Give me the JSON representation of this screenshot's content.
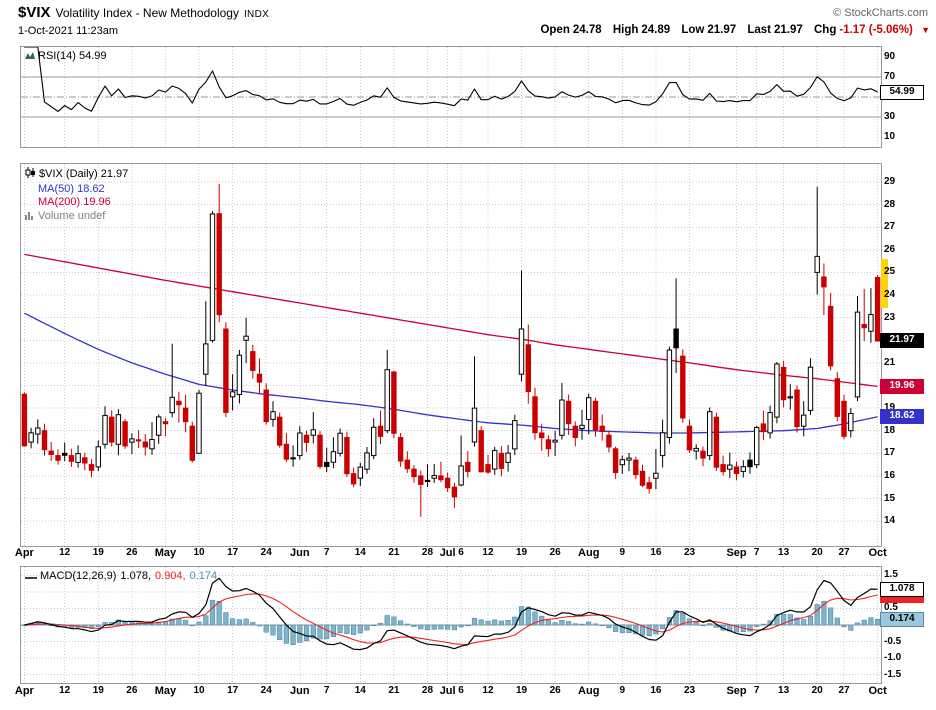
{
  "header": {
    "symbol": "$VIX",
    "title": "Volatility Index - New Methodology",
    "exchange": "INDX",
    "copyright": "© StockCharts.com",
    "timestamp": "1-Oct-2021 11:23am",
    "quote": [
      {
        "label": "Open",
        "value": "24.78"
      },
      {
        "label": "High",
        "value": "24.89"
      },
      {
        "label": "Low",
        "value": "21.97"
      },
      {
        "label": "Last",
        "value": "21.97"
      },
      {
        "label": "Chg",
        "value": "-1.17 (-5.06%)"
      }
    ],
    "direction_arrow": "▼"
  },
  "panels": {
    "rsi": {
      "legend_text": "RSI(14) 54.99",
      "range": [
        0,
        100
      ],
      "ticks": [
        90,
        70,
        50,
        30,
        10
      ],
      "overbought": 70,
      "oversold": 30,
      "midline": 50,
      "value_box": {
        "text": "54.99",
        "value": 54.99,
        "bg": "#ffffff",
        "fg": "#000000",
        "border": "#000000"
      }
    },
    "price": {
      "legend_symbol": "$VIX (Daily) 21.97",
      "legend_ma50": "MA(50) 18.62",
      "legend_ma200": "MA(200) 19.96",
      "legend_volume": "Volume undef",
      "range": [
        12.9,
        29.8
      ],
      "ticks": [
        29,
        28,
        27,
        26,
        25,
        24,
        23,
        22,
        21,
        20,
        19,
        18,
        17,
        16,
        15,
        14
      ],
      "boxes": [
        {
          "text": "21.97",
          "value": 21.97,
          "bg": "#000000",
          "fg": "#ffffff",
          "border": "#000000"
        },
        {
          "text": "19.96",
          "value": 19.96,
          "bg": "#cc0033",
          "fg": "#ffffff",
          "border": "#cc0033"
        },
        {
          "text": "18.62",
          "value": 18.62,
          "bg": "#3333cc",
          "fg": "#ffffff",
          "border": "#3333cc"
        }
      ],
      "highlight": {
        "from": 25.55,
        "to": 23.4,
        "color": "#ffd400"
      }
    },
    "macd": {
      "legend_name": "MACD(12,26,9)",
      "legend_line_value": "1.078,",
      "legend_signal_value": "0.904,",
      "legend_hist_value": "0.174",
      "range": [
        -1.75,
        1.75
      ],
      "ticks": [
        {
          "t": "1.5",
          "v": 1.5
        },
        {
          "t": "1.0",
          "v": 1.0
        },
        {
          "t": "0.5",
          "v": 0.5
        },
        {
          "t": "0.0",
          "v": 0.0
        },
        {
          "t": "-0.5",
          "v": -0.5
        },
        {
          "t": "-1.0",
          "v": -1.0
        },
        {
          "t": "-1.5",
          "v": -1.5
        }
      ],
      "boxes": [
        {
          "text": "0.904",
          "value": 0.904,
          "bg": "#ee2222",
          "fg": "#ffffff",
          "border": "#ee2222"
        },
        {
          "text": "1.078",
          "value": 1.078,
          "bg": "#ffffff",
          "fg": "#000000",
          "border": "#000000"
        },
        {
          "text": "0.174",
          "value": 0.174,
          "bg": "#9cc7dc",
          "fg": "#000000",
          "border": "#4f8aa8"
        }
      ]
    }
  },
  "x_axis": {
    "ticks": [
      {
        "label": "Apr",
        "i": 0,
        "month": true
      },
      {
        "label": "12",
        "i": 6,
        "month": false
      },
      {
        "label": "19",
        "i": 11,
        "month": false
      },
      {
        "label": "26",
        "i": 16,
        "month": false
      },
      {
        "label": "May",
        "i": 21,
        "month": true
      },
      {
        "label": "10",
        "i": 26,
        "month": false
      },
      {
        "label": "17",
        "i": 31,
        "month": false
      },
      {
        "label": "24",
        "i": 36,
        "month": false
      },
      {
        "label": "Jun",
        "i": 41,
        "month": true
      },
      {
        "label": "7",
        "i": 45,
        "month": false
      },
      {
        "label": "14",
        "i": 50,
        "month": false
      },
      {
        "label": "21",
        "i": 55,
        "month": false
      },
      {
        "label": "28",
        "i": 60,
        "month": false
      },
      {
        "label": "Jul",
        "i": 63,
        "month": true
      },
      {
        "label": "6",
        "i": 65,
        "month": false
      },
      {
        "label": "12",
        "i": 69,
        "month": false
      },
      {
        "label": "19",
        "i": 74,
        "month": false
      },
      {
        "label": "26",
        "i": 79,
        "month": false
      },
      {
        "label": "Aug",
        "i": 84,
        "month": true
      },
      {
        "label": "9",
        "i": 89,
        "month": false
      },
      {
        "label": "16",
        "i": 94,
        "month": false
      },
      {
        "label": "23",
        "i": 99,
        "month": false
      },
      {
        "label": "Sep",
        "i": 106,
        "month": true
      },
      {
        "label": "7",
        "i": 109,
        "month": false
      },
      {
        "label": "13",
        "i": 113,
        "month": false
      },
      {
        "label": "20",
        "i": 118,
        "month": false
      },
      {
        "label": "27",
        "i": 122,
        "month": false
      },
      {
        "label": "Oct",
        "i": 127,
        "month": true
      }
    ]
  },
  "colors": {
    "candle_up": "#000000",
    "candle_down": "#cc0000",
    "ma50": "#3333cc",
    "ma200": "#cc0033",
    "rsi_line": "#000000",
    "macd_line": "#000000",
    "macd_signal": "#ee2222",
    "macd_hist": "#7fb4cc",
    "macd_hist_border": "#4f8aa8",
    "grid": "#cccccc",
    "panel_border": "#999999"
  },
  "chart_data": {
    "type": "candlestick",
    "symbol": "$VIX",
    "timeframe": "daily",
    "ylim": [
      12.9,
      29.8
    ],
    "indicators": {
      "rsi_period": 14,
      "macd": [
        12,
        26,
        9
      ],
      "ma": [
        50,
        200
      ]
    },
    "last_values": {
      "open": 24.78,
      "high": 24.89,
      "low": 21.97,
      "last": 21.97,
      "chg": -1.17,
      "chg_pct": -5.06,
      "rsi": 54.99,
      "ma50": 18.62,
      "ma200": 19.96,
      "macd_line": 1.078,
      "macd_signal": 0.904,
      "macd_hist": 0.174
    },
    "ohlc": [
      [
        19.61,
        19.69,
        17.29,
        17.33
      ],
      [
        17.5,
        18.13,
        17.22,
        17.91
      ],
      [
        17.85,
        18.5,
        17.42,
        18.12
      ],
      [
        18.0,
        18.31,
        16.89,
        17.16
      ],
      [
        17.1,
        17.5,
        16.66,
        16.95
      ],
      [
        16.9,
        17.17,
        16.5,
        16.69
      ],
      [
        17.0,
        17.48,
        16.66,
        16.91
      ],
      [
        16.9,
        17.2,
        16.4,
        16.65
      ],
      [
        16.6,
        17.36,
        16.37,
        16.99
      ],
      [
        16.8,
        17.03,
        16.25,
        16.57
      ],
      [
        16.5,
        16.74,
        15.94,
        16.25
      ],
      [
        16.4,
        17.57,
        16.21,
        17.29
      ],
      [
        17.4,
        19.08,
        17.21,
        18.68
      ],
      [
        18.6,
        18.9,
        17.3,
        17.5
      ],
      [
        17.4,
        18.95,
        16.91,
        18.71
      ],
      [
        18.4,
        18.52,
        17.2,
        17.33
      ],
      [
        17.5,
        17.89,
        16.96,
        17.64
      ],
      [
        17.6,
        18.03,
        17.23,
        17.56
      ],
      [
        17.5,
        17.85,
        16.9,
        17.28
      ],
      [
        17.2,
        18.38,
        16.93,
        17.61
      ],
      [
        17.8,
        18.72,
        17.42,
        18.61
      ],
      [
        18.4,
        18.56,
        17.76,
        18.31
      ],
      [
        18.8,
        21.85,
        18.59,
        19.48
      ],
      [
        19.3,
        19.72,
        18.35,
        19.15
      ],
      [
        19.0,
        19.6,
        17.93,
        18.4
      ],
      [
        18.2,
        18.4,
        16.6,
        16.69
      ],
      [
        17.0,
        19.8,
        16.98,
        19.66
      ],
      [
        20.5,
        23.73,
        19.98,
        21.84
      ],
      [
        22.0,
        27.71,
        21.9,
        27.59
      ],
      [
        27.6,
        28.93,
        22.8,
        23.13
      ],
      [
        22.5,
        22.8,
        18.6,
        18.81
      ],
      [
        19.5,
        20.5,
        18.9,
        19.72
      ],
      [
        19.6,
        21.57,
        19.21,
        21.34
      ],
      [
        22.0,
        23.0,
        20.99,
        22.18
      ],
      [
        21.5,
        21.8,
        20.3,
        20.67
      ],
      [
        20.5,
        21.2,
        19.65,
        20.15
      ],
      [
        19.8,
        20.1,
        18.27,
        18.4
      ],
      [
        18.5,
        19.3,
        18.18,
        18.84
      ],
      [
        18.6,
        18.8,
        17.25,
        17.36
      ],
      [
        17.4,
        17.91,
        16.61,
        16.74
      ],
      [
        16.8,
        17.35,
        16.41,
        16.76
      ],
      [
        16.9,
        18.2,
        16.72,
        17.9
      ],
      [
        17.8,
        18.0,
        17.06,
        17.48
      ],
      [
        17.8,
        18.82,
        17.44,
        18.04
      ],
      [
        17.8,
        17.98,
        16.32,
        16.42
      ],
      [
        16.6,
        17.25,
        16.17,
        16.42
      ],
      [
        16.6,
        17.71,
        16.34,
        17.07
      ],
      [
        17.0,
        18.1,
        16.86,
        17.89
      ],
      [
        17.7,
        17.96,
        15.95,
        16.1
      ],
      [
        16.1,
        16.37,
        15.5,
        15.65
      ],
      [
        15.9,
        16.58,
        15.55,
        16.39
      ],
      [
        16.3,
        17.28,
        16.1,
        17.02
      ],
      [
        16.9,
        18.55,
        16.74,
        18.15
      ],
      [
        18.2,
        18.9,
        17.4,
        17.75
      ],
      [
        18.0,
        21.58,
        17.89,
        20.7
      ],
      [
        20.6,
        20.66,
        17.66,
        17.89
      ],
      [
        17.7,
        17.9,
        16.41,
        16.66
      ],
      [
        16.7,
        17.09,
        16.13,
        16.32
      ],
      [
        16.3,
        16.48,
        15.7,
        15.97
      ],
      [
        16.0,
        16.23,
        14.19,
        15.62
      ],
      [
        15.8,
        16.51,
        15.51,
        15.76
      ],
      [
        15.9,
        16.53,
        15.69,
        16.02
      ],
      [
        16.0,
        16.63,
        15.72,
        15.83
      ],
      [
        15.9,
        16.15,
        15.29,
        15.48
      ],
      [
        15.5,
        15.7,
        14.59,
        15.07
      ],
      [
        15.6,
        17.79,
        15.54,
        16.44
      ],
      [
        16.6,
        17.1,
        15.93,
        16.2
      ],
      [
        17.5,
        21.29,
        17.3,
        19.0
      ],
      [
        18.0,
        18.2,
        16.15,
        16.18
      ],
      [
        16.5,
        16.94,
        16.08,
        16.17
      ],
      [
        16.3,
        17.29,
        16.05,
        17.12
      ],
      [
        17.0,
        17.33,
        15.98,
        16.33
      ],
      [
        16.6,
        17.37,
        16.19,
        17.01
      ],
      [
        17.2,
        18.71,
        16.92,
        18.45
      ],
      [
        20.5,
        25.09,
        20.18,
        22.5
      ],
      [
        21.8,
        22.7,
        19.19,
        19.73
      ],
      [
        19.5,
        19.9,
        17.6,
        17.91
      ],
      [
        17.9,
        18.31,
        17.11,
        17.69
      ],
      [
        17.6,
        17.8,
        16.85,
        17.2
      ],
      [
        17.5,
        18.0,
        16.88,
        17.58
      ],
      [
        17.8,
        20.11,
        17.61,
        19.36
      ],
      [
        19.3,
        19.6,
        17.82,
        18.31
      ],
      [
        18.2,
        18.41,
        17.31,
        17.7
      ],
      [
        18.1,
        18.92,
        17.6,
        18.24
      ],
      [
        18.5,
        19.64,
        17.84,
        19.46
      ],
      [
        19.3,
        19.46,
        17.74,
        18.04
      ],
      [
        18.2,
        18.72,
        17.56,
        17.97
      ],
      [
        17.8,
        18.0,
        17.04,
        17.28
      ],
      [
        17.2,
        17.3,
        15.87,
        16.15
      ],
      [
        16.5,
        16.9,
        16.09,
        16.72
      ],
      [
        16.7,
        17.02,
        16.21,
        16.79
      ],
      [
        16.7,
        16.85,
        15.86,
        16.06
      ],
      [
        16.2,
        16.5,
        15.51,
        15.59
      ],
      [
        15.7,
        15.96,
        15.22,
        15.45
      ],
      [
        15.9,
        17.19,
        15.41,
        16.12
      ],
      [
        16.9,
        18.49,
        16.37,
        17.91
      ],
      [
        17.7,
        21.72,
        17.43,
        21.57
      ],
      [
        22.5,
        24.74,
        20.56,
        21.67
      ],
      [
        21.3,
        21.6,
        18.35,
        18.56
      ],
      [
        18.2,
        18.5,
        17.02,
        17.15
      ],
      [
        17.1,
        17.4,
        16.72,
        17.22
      ],
      [
        17.1,
        17.3,
        16.43,
        16.79
      ],
      [
        16.9,
        19.03,
        16.7,
        18.84
      ],
      [
        18.6,
        18.8,
        16.22,
        16.39
      ],
      [
        16.5,
        16.9,
        16.02,
        16.19
      ],
      [
        16.3,
        17.04,
        15.91,
        16.48
      ],
      [
        16.4,
        16.64,
        15.8,
        16.11
      ],
      [
        16.2,
        16.7,
        15.93,
        16.41
      ],
      [
        16.7,
        17.04,
        16.1,
        16.41
      ],
      [
        16.5,
        18.22,
        16.34,
        18.14
      ],
      [
        18.3,
        18.89,
        17.58,
        17.96
      ],
      [
        17.9,
        19.11,
        17.66,
        18.8
      ],
      [
        18.6,
        21.04,
        18.33,
        20.95
      ],
      [
        20.8,
        21.1,
        19.04,
        19.37
      ],
      [
        19.5,
        20.06,
        18.93,
        19.46
      ],
      [
        19.8,
        20.0,
        17.92,
        18.18
      ],
      [
        18.2,
        19.31,
        17.75,
        18.69
      ],
      [
        18.9,
        21.21,
        18.7,
        20.81
      ],
      [
        25.0,
        28.79,
        24.02,
        25.71
      ],
      [
        24.8,
        25.4,
        23.11,
        24.36
      ],
      [
        23.5,
        24.1,
        20.67,
        20.87
      ],
      [
        20.3,
        20.6,
        18.42,
        18.63
      ],
      [
        19.3,
        19.6,
        17.62,
        17.75
      ],
      [
        18.0,
        19.0,
        17.7,
        18.76
      ],
      [
        19.5,
        23.96,
        19.31,
        23.25
      ],
      [
        22.7,
        24.28,
        21.96,
        22.56
      ],
      [
        22.4,
        24.31,
        21.9,
        23.14
      ],
      [
        24.78,
        24.89,
        21.97,
        21.97
      ]
    ],
    "ma50_keyframes": [
      [
        0,
        23.2
      ],
      [
        6,
        22.3
      ],
      [
        11,
        21.6
      ],
      [
        16,
        21.0
      ],
      [
        21,
        20.5
      ],
      [
        26,
        20.05
      ],
      [
        31,
        19.8
      ],
      [
        36,
        19.6
      ],
      [
        41,
        19.45
      ],
      [
        45,
        19.3
      ],
      [
        50,
        19.15
      ],
      [
        55,
        18.95
      ],
      [
        60,
        18.7
      ],
      [
        65,
        18.5
      ],
      [
        69,
        18.35
      ],
      [
        74,
        18.25
      ],
      [
        79,
        18.1
      ],
      [
        84,
        18.0
      ],
      [
        89,
        17.95
      ],
      [
        94,
        17.9
      ],
      [
        99,
        17.9
      ],
      [
        106,
        17.95
      ],
      [
        113,
        18.0
      ],
      [
        118,
        18.1
      ],
      [
        122,
        18.3
      ],
      [
        127,
        18.62
      ]
    ],
    "ma200_keyframes": [
      [
        0,
        25.8
      ],
      [
        11,
        25.2
      ],
      [
        21,
        24.65
      ],
      [
        31,
        24.15
      ],
      [
        41,
        23.65
      ],
      [
        50,
        23.2
      ],
      [
        60,
        22.7
      ],
      [
        65,
        22.45
      ],
      [
        69,
        22.25
      ],
      [
        74,
        22.05
      ],
      [
        79,
        21.8
      ],
      [
        84,
        21.6
      ],
      [
        89,
        21.4
      ],
      [
        94,
        21.2
      ],
      [
        99,
        21.0
      ],
      [
        106,
        20.7
      ],
      [
        113,
        20.45
      ],
      [
        118,
        20.3
      ],
      [
        122,
        20.15
      ],
      [
        127,
        19.96
      ]
    ]
  }
}
